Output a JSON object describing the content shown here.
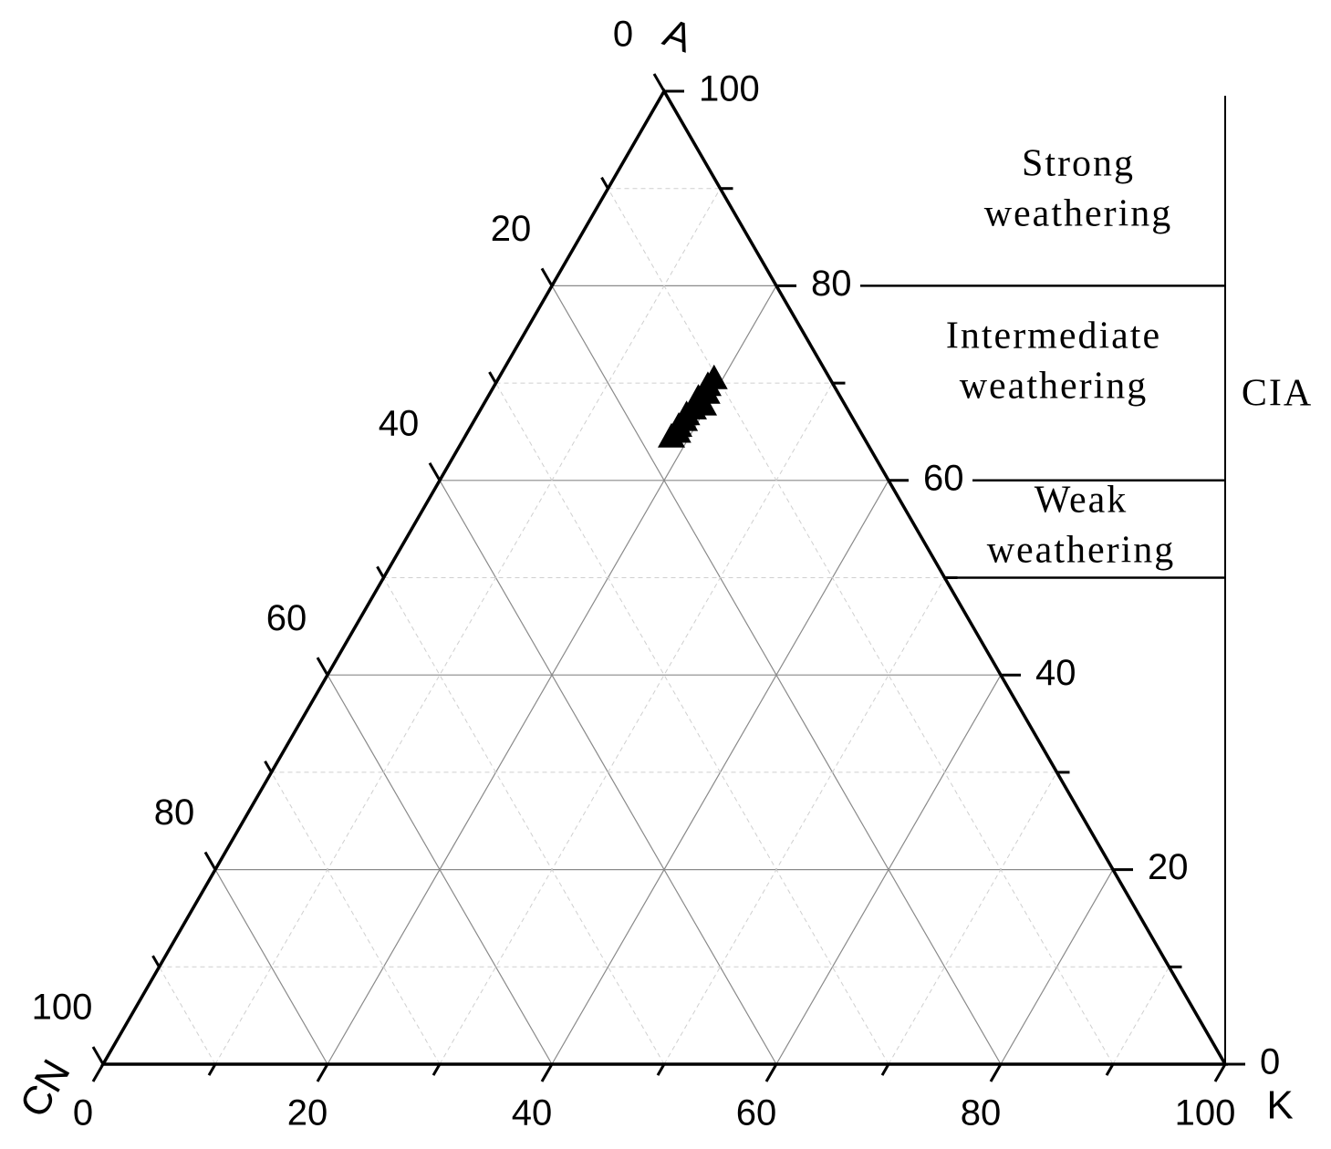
{
  "chart_data": {
    "type": "ternary",
    "a_label": "A",
    "cn_label": "CN",
    "k_label": "K",
    "ticks": [
      0,
      20,
      40,
      60,
      80,
      100
    ],
    "minor_ticks": [
      10,
      30,
      50,
      70,
      90
    ],
    "grid": true,
    "series": [
      {
        "color": "#000000",
        "marker": "triangle",
        "a": [
          70.5,
          69.8,
          69.0,
          68.5,
          68.0,
          67.8,
          67.4,
          66.8,
          66.2,
          65.6,
          65.0,
          64.5
        ],
        "cn": [
          10.3,
          11.2,
          11.7,
          12.7,
          13.0,
          12.6,
          13.7,
          14.6,
          15.1,
          15.9,
          16.3,
          17.1
        ],
        "k": [
          19.2,
          19.0,
          19.3,
          18.8,
          19.0,
          19.6,
          18.9,
          18.6,
          18.7,
          18.5,
          18.7,
          18.4
        ]
      }
    ],
    "cia": {
      "label": "CIA",
      "boundaries": [
        80,
        60,
        50
      ],
      "zones": [
        {
          "lines": [
            "Strong",
            "weathering"
          ]
        },
        {
          "lines": [
            "Intermediate",
            "weathering"
          ]
        },
        {
          "lines": [
            "Weak",
            "weathering"
          ]
        }
      ]
    }
  }
}
